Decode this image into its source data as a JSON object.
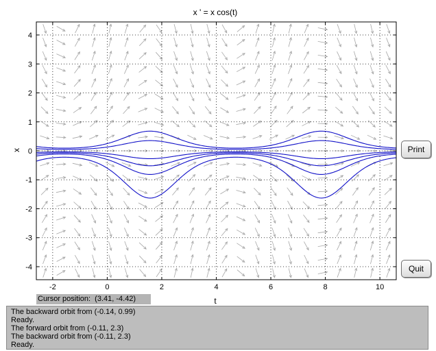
{
  "chart_data": {
    "type": "line",
    "title": "x ' = x cos(t)",
    "xlabel": "t",
    "ylabel": "x",
    "xlim": [
      -2.6,
      10.6
    ],
    "ylim": [
      -4.45,
      4.45
    ],
    "xticks": [
      -2,
      0,
      2,
      4,
      6,
      8,
      10
    ],
    "yticks": [
      -4,
      -3,
      -2,
      -1,
      0,
      1,
      2,
      3,
      4
    ],
    "grid": true,
    "direction_field": true,
    "solution_curves_x_at_t0": [
      0.25,
      0.13,
      -0.1,
      -0.19,
      -0.3,
      -0.6
    ],
    "color": "#1010c8"
  },
  "buttons": {
    "print": "Print",
    "quit": "Quit"
  },
  "status": {
    "cursor_label": "Cursor position:",
    "cursor_value": "(3.41, -4.42)"
  },
  "messages": [
    "The backward orbit from (-0.14, 0.99)",
    "Ready.",
    "The forward orbit from (-0.11, 2.3)",
    "The backward orbit from (-0.11, 2.3)",
    "Ready."
  ]
}
